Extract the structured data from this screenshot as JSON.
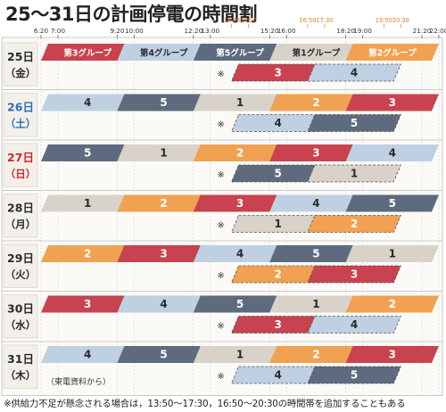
{
  "title": "25〜31日の計画停電の時間割",
  "footnote": "※供給力不足が懸念される場合は，13:50〜17:30，16:50〜20:30の時間帯を追加することもある",
  "source_note": "（東電資料から）",
  "asterisk": "※",
  "colors": {
    "g1": "#d8d2c9",
    "g2": "#f0a252",
    "g3": "#c8434f",
    "g4": "#bfd0e2",
    "g5": "#5e6b7e",
    "header_text": "#ffffff",
    "date_box": "#ffffff",
    "grid": "#cfcfcf",
    "row_label_bg": "#f3f0ea",
    "extra_tick_color": "#e07b2a"
  },
  "time_axis": {
    "main_ticks": [
      "6:20",
      "7:00",
      "9:20",
      "10:00",
      "12:20",
      "13:00",
      "15:20",
      "16:00",
      "18:20",
      "19:00",
      "21:20",
      "22:00"
    ],
    "extra_ticks": [
      "13:50",
      "14:30",
      "16:50",
      "17:30",
      "19:50",
      "20:30"
    ]
  },
  "days": [
    {
      "date": "25日",
      "weekday": "（金）",
      "label_color": "#2a2a2a",
      "main": [
        {
          "group": 3,
          "start": "6:20",
          "end": "10:00",
          "text": "第3グループ"
        },
        {
          "group": 4,
          "start": "9:20",
          "end": "13:00",
          "text": "第4グループ"
        },
        {
          "group": 5,
          "start": "12:20",
          "end": "16:00",
          "text": "第5グループ"
        },
        {
          "group": 1,
          "start": "15:20",
          "end": "19:00",
          "text": "第1グループ"
        },
        {
          "group": 2,
          "start": "18:20",
          "end": "22:00",
          "text": "第2グループ"
        }
      ],
      "extra": [
        {
          "group": 3,
          "start": "13:50",
          "end": "17:30",
          "text": "3"
        },
        {
          "group": 4,
          "start": "16:50",
          "end": "20:30",
          "text": "4"
        }
      ]
    },
    {
      "date": "26日",
      "weekday": "（土）",
      "label_color": "#2a6fb5",
      "main": [
        {
          "group": 4,
          "start": "6:20",
          "end": "10:00",
          "text": "4"
        },
        {
          "group": 5,
          "start": "9:20",
          "end": "13:00",
          "text": "5"
        },
        {
          "group": 1,
          "start": "12:20",
          "end": "16:00",
          "text": "1"
        },
        {
          "group": 2,
          "start": "15:20",
          "end": "19:00",
          "text": "2"
        },
        {
          "group": 3,
          "start": "18:20",
          "end": "22:00",
          "text": "3"
        }
      ],
      "extra": [
        {
          "group": 4,
          "start": "13:50",
          "end": "17:30",
          "text": "4"
        },
        {
          "group": 5,
          "start": "16:50",
          "end": "20:30",
          "text": "5"
        }
      ]
    },
    {
      "date": "27日",
      "weekday": "（日）",
      "label_color": "#d0262c",
      "main": [
        {
          "group": 5,
          "start": "6:20",
          "end": "10:00",
          "text": "5"
        },
        {
          "group": 1,
          "start": "9:20",
          "end": "13:00",
          "text": "1"
        },
        {
          "group": 2,
          "start": "12:20",
          "end": "16:00",
          "text": "2"
        },
        {
          "group": 3,
          "start": "15:20",
          "end": "19:00",
          "text": "3"
        },
        {
          "group": 4,
          "start": "18:20",
          "end": "22:00",
          "text": "4"
        }
      ],
      "extra": [
        {
          "group": 5,
          "start": "13:50",
          "end": "17:30",
          "text": "5"
        },
        {
          "group": 1,
          "start": "16:50",
          "end": "20:30",
          "text": "1"
        }
      ]
    },
    {
      "date": "28日",
      "weekday": "（月）",
      "label_color": "#2a2a2a",
      "main": [
        {
          "group": 1,
          "start": "6:20",
          "end": "10:00",
          "text": "1"
        },
        {
          "group": 2,
          "start": "9:20",
          "end": "13:00",
          "text": "2"
        },
        {
          "group": 3,
          "start": "12:20",
          "end": "16:00",
          "text": "3"
        },
        {
          "group": 4,
          "start": "15:20",
          "end": "19:00",
          "text": "4"
        },
        {
          "group": 5,
          "start": "18:20",
          "end": "22:00",
          "text": "5"
        }
      ],
      "extra": [
        {
          "group": 1,
          "start": "13:50",
          "end": "17:30",
          "text": "1"
        },
        {
          "group": 2,
          "start": "16:50",
          "end": "20:30",
          "text": "2"
        }
      ]
    },
    {
      "date": "29日",
      "weekday": "（火）",
      "label_color": "#2a2a2a",
      "main": [
        {
          "group": 2,
          "start": "6:20",
          "end": "10:00",
          "text": "2"
        },
        {
          "group": 3,
          "start": "9:20",
          "end": "13:00",
          "text": "3"
        },
        {
          "group": 4,
          "start": "12:20",
          "end": "16:00",
          "text": "4"
        },
        {
          "group": 5,
          "start": "15:20",
          "end": "19:00",
          "text": "5"
        },
        {
          "group": 1,
          "start": "18:20",
          "end": "22:00",
          "text": "1"
        }
      ],
      "extra": [
        {
          "group": 2,
          "start": "13:50",
          "end": "17:30",
          "text": "2"
        },
        {
          "group": 3,
          "start": "16:50",
          "end": "20:30",
          "text": "3"
        }
      ]
    },
    {
      "date": "30日",
      "weekday": "（水）",
      "label_color": "#2a2a2a",
      "main": [
        {
          "group": 3,
          "start": "6:20",
          "end": "10:00",
          "text": "3"
        },
        {
          "group": 4,
          "start": "9:20",
          "end": "13:00",
          "text": "4"
        },
        {
          "group": 5,
          "start": "12:20",
          "end": "16:00",
          "text": "5"
        },
        {
          "group": 1,
          "start": "15:20",
          "end": "19:00",
          "text": "1"
        },
        {
          "group": 2,
          "start": "18:20",
          "end": "22:00",
          "text": "2"
        }
      ],
      "extra": [
        {
          "group": 3,
          "start": "13:50",
          "end": "17:30",
          "text": "3"
        },
        {
          "group": 4,
          "start": "16:50",
          "end": "20:30",
          "text": "4"
        }
      ]
    },
    {
      "date": "31日",
      "weekday": "（木）",
      "label_color": "#2a2a2a",
      "main": [
        {
          "group": 4,
          "start": "6:20",
          "end": "10:00",
          "text": "4"
        },
        {
          "group": 5,
          "start": "9:20",
          "end": "13:00",
          "text": "5"
        },
        {
          "group": 1,
          "start": "12:20",
          "end": "16:00",
          "text": "1"
        },
        {
          "group": 2,
          "start": "15:20",
          "end": "19:00",
          "text": "2"
        },
        {
          "group": 3,
          "start": "18:20",
          "end": "22:00",
          "text": "3"
        }
      ],
      "extra": [
        {
          "group": 4,
          "start": "13:50",
          "end": "17:30",
          "text": "4"
        },
        {
          "group": 5,
          "start": "16:50",
          "end": "20:30",
          "text": "5"
        }
      ]
    }
  ]
}
